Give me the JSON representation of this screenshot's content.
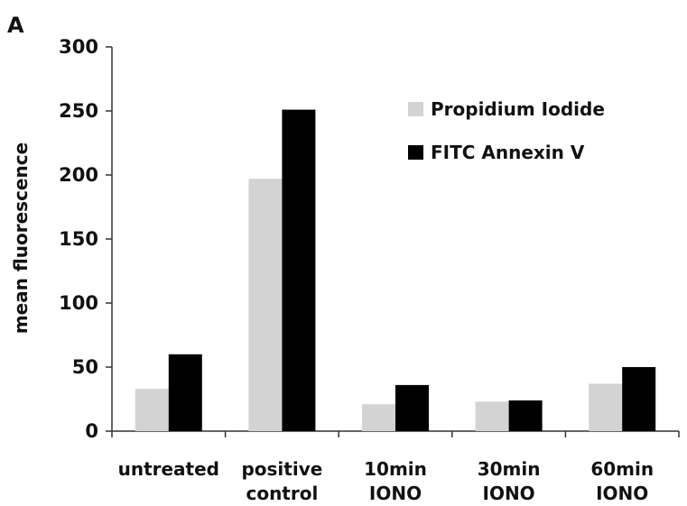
{
  "panel_label": "A",
  "chart_data": {
    "type": "bar",
    "title": "",
    "xlabel": "",
    "ylabel": "mean fluorescence",
    "ylim": [
      0,
      300
    ],
    "yticks": [
      0,
      50,
      100,
      150,
      200,
      250,
      300
    ],
    "grid": false,
    "legend_position": "top-right",
    "categories": [
      [
        "untreated"
      ],
      [
        "positive",
        "control"
      ],
      [
        "10min",
        "IONO"
      ],
      [
        "30min",
        "IONO"
      ],
      [
        "60min",
        "IONO"
      ]
    ],
    "series": [
      {
        "name": "Propidium Iodide",
        "color": "#d3d3d3",
        "values": [
          33,
          197,
          21,
          23,
          37
        ]
      },
      {
        "name": "FITC Annexin V",
        "color": "#000000",
        "values": [
          60,
          251,
          36,
          24,
          50
        ]
      }
    ]
  }
}
